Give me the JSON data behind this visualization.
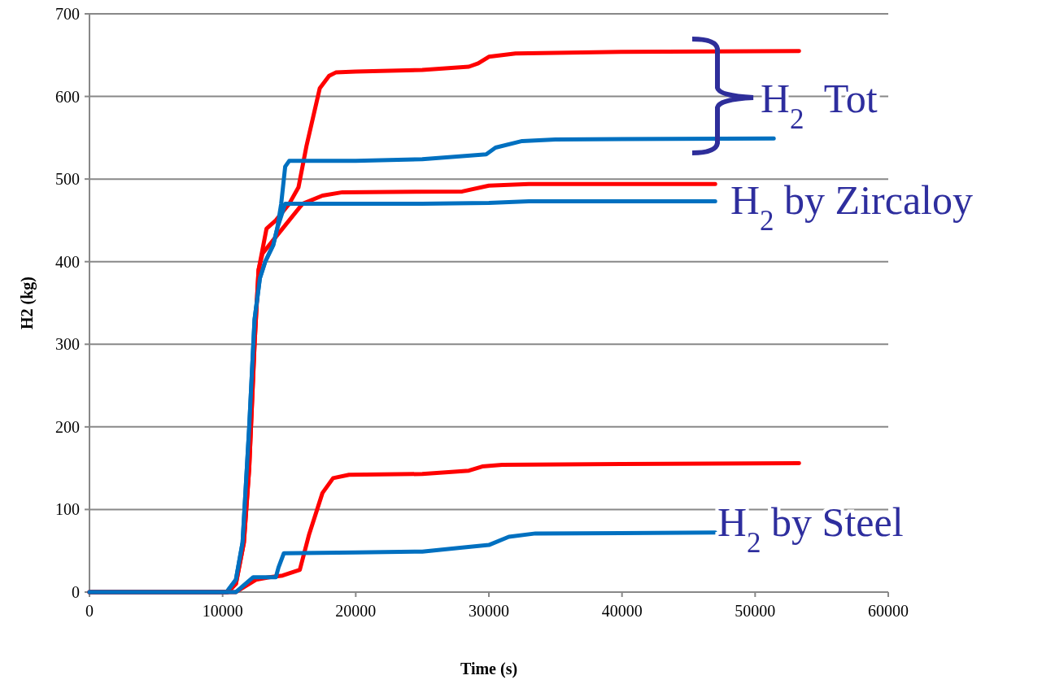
{
  "chart_data": {
    "type": "line",
    "xlabel": "Time (s)",
    "ylabel": "H2 (kg)",
    "xlim": [
      0,
      60000
    ],
    "xticks": [
      0,
      10000,
      20000,
      30000,
      40000,
      50000,
      60000
    ],
    "ylim": [
      0,
      700
    ],
    "yticks": [
      0,
      100,
      200,
      300,
      400,
      500,
      600,
      700
    ],
    "grid": "y",
    "marker": "none",
    "line_style": "solid",
    "series": [
      {
        "color": "#ff0000",
        "x": [
          0,
          10400,
          11000,
          11600,
          12000,
          12400,
          12700,
          13000,
          13300,
          14000,
          15000,
          15700,
          16300,
          17300,
          18000,
          18500,
          20000,
          25000,
          28500,
          29200,
          30000,
          32000,
          40000,
          53300
        ],
        "values": [
          0,
          0,
          10,
          60,
          150,
          300,
          390,
          415,
          440,
          450,
          470,
          490,
          540,
          610,
          625,
          629,
          630,
          632,
          636,
          640,
          648,
          652,
          654,
          655
        ]
      },
      {
        "color": "#0070c0",
        "x": [
          0,
          10300,
          11000,
          11500,
          12000,
          12400,
          12800,
          13200,
          13800,
          14100,
          14400,
          14700,
          15000,
          20000,
          25000,
          29800,
          30500,
          32500,
          35000,
          51400
        ],
        "values": [
          0,
          0,
          15,
          60,
          200,
          330,
          380,
          400,
          420,
          440,
          470,
          515,
          522,
          522,
          524,
          530,
          538,
          546,
          548,
          549
        ]
      },
      {
        "color": "#ff0000",
        "x": [
          0,
          10400,
          11000,
          11600,
          12000,
          12400,
          12700,
          13000,
          13500,
          14500,
          16000,
          17500,
          19000,
          28000,
          30000,
          33000,
          47000
        ],
        "values": [
          0,
          0,
          10,
          60,
          150,
          300,
          390,
          410,
          420,
          440,
          470,
          480,
          484,
          485,
          492,
          494,
          494
        ]
      },
      {
        "color": "#0070c0",
        "x": [
          0,
          10300,
          11000,
          11500,
          12000,
          12400,
          12800,
          13200,
          13800,
          14100,
          14700,
          25000,
          30000,
          33000,
          47000
        ],
        "values": [
          0,
          0,
          15,
          60,
          200,
          330,
          380,
          400,
          420,
          440,
          470,
          470,
          471,
          473,
          473
        ]
      },
      {
        "color": "#ff0000",
        "x": [
          0,
          11000,
          12500,
          13500,
          14500,
          15800,
          16500,
          17500,
          18300,
          19500,
          25000,
          28500,
          29500,
          31000,
          40000,
          53300
        ],
        "values": [
          0,
          0,
          15,
          18,
          20,
          27,
          70,
          120,
          138,
          142,
          143,
          147,
          152,
          154,
          155,
          156
        ]
      },
      {
        "color": "#0070c0",
        "x": [
          0,
          11000,
          12300,
          14000,
          14200,
          14600,
          20000,
          25000,
          28000,
          30000,
          31500,
          33500,
          47000
        ],
        "values": [
          0,
          0,
          18,
          18,
          30,
          47,
          48,
          49,
          54,
          57,
          67,
          71,
          72
        ]
      }
    ],
    "annotations": [
      "H$_{2}$  Tot",
      "H$_{2}$ by Zircaloy",
      "H$_{2}$ by Steel"
    ]
  }
}
